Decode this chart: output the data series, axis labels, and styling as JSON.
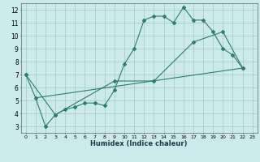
{
  "title": "",
  "xlabel": "Humidex (Indice chaleur)",
  "bg_color": "#cce9ec",
  "grid_color": "#aacccc",
  "line_color": "#2e7d6e",
  "xlim": [
    -0.5,
    23.5
  ],
  "ylim": [
    2.5,
    12.5
  ],
  "xticks": [
    0,
    1,
    2,
    3,
    4,
    5,
    6,
    7,
    8,
    9,
    10,
    11,
    12,
    13,
    14,
    15,
    16,
    17,
    18,
    19,
    20,
    21,
    22,
    23
  ],
  "yticks": [
    3,
    4,
    5,
    6,
    7,
    8,
    9,
    10,
    11,
    12
  ],
  "line1_x": [
    0,
    1,
    2,
    3,
    4,
    5,
    6,
    7,
    8,
    9,
    10,
    11,
    12,
    13,
    14,
    15,
    16,
    17,
    18,
    19,
    20,
    21,
    22
  ],
  "line1_y": [
    7.0,
    5.2,
    3.0,
    3.9,
    4.3,
    4.5,
    4.8,
    4.8,
    4.6,
    5.8,
    7.8,
    9.0,
    11.2,
    11.5,
    11.5,
    11.0,
    12.2,
    11.2,
    11.2,
    10.3,
    9.0,
    8.5,
    7.5
  ],
  "line2_x": [
    0,
    3,
    9,
    13,
    17,
    20,
    22
  ],
  "line2_y": [
    7.0,
    3.9,
    6.5,
    6.5,
    9.5,
    10.3,
    7.5
  ],
  "line3_x": [
    1,
    22
  ],
  "line3_y": [
    5.2,
    7.5
  ]
}
